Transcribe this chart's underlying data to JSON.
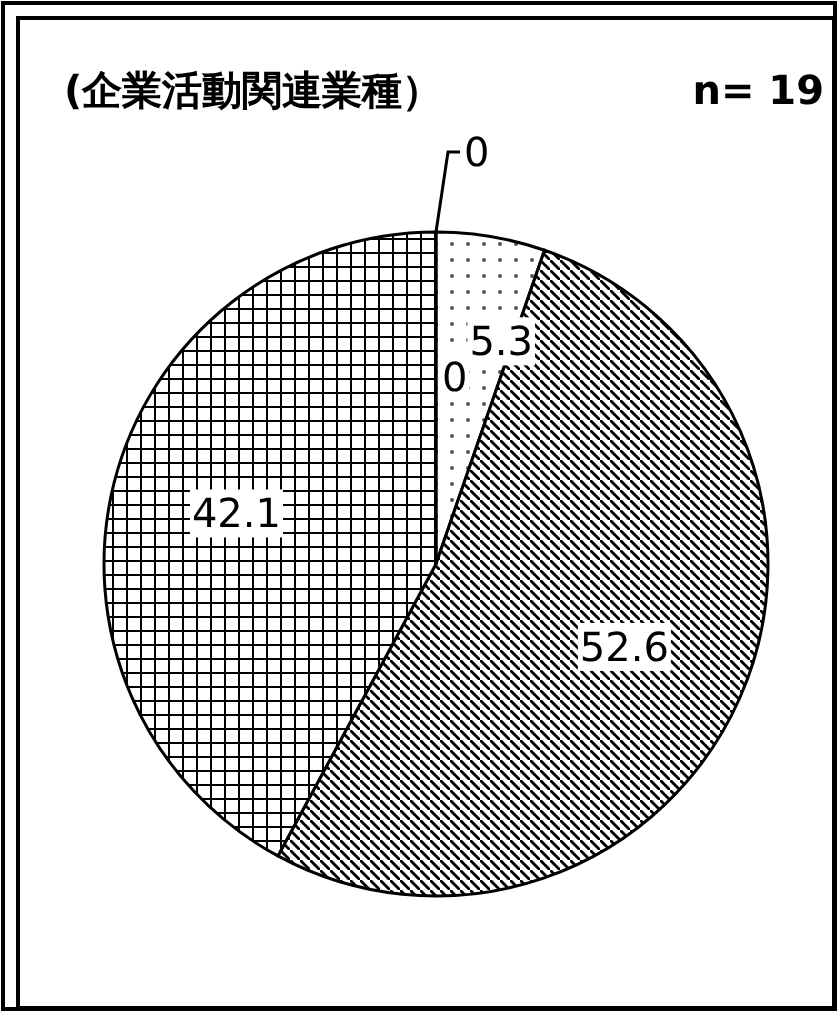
{
  "chart_data": {
    "type": "pie",
    "title": "(企業活動関連業種）",
    "subtitle": "n= 19",
    "categories": [
      null,
      null,
      null,
      null,
      null
    ],
    "values": [
      0,
      0,
      5.3,
      52.6,
      42.1
    ],
    "value_labels": [
      "0",
      "0",
      "5.3",
      "52.6",
      "42.1"
    ]
  }
}
